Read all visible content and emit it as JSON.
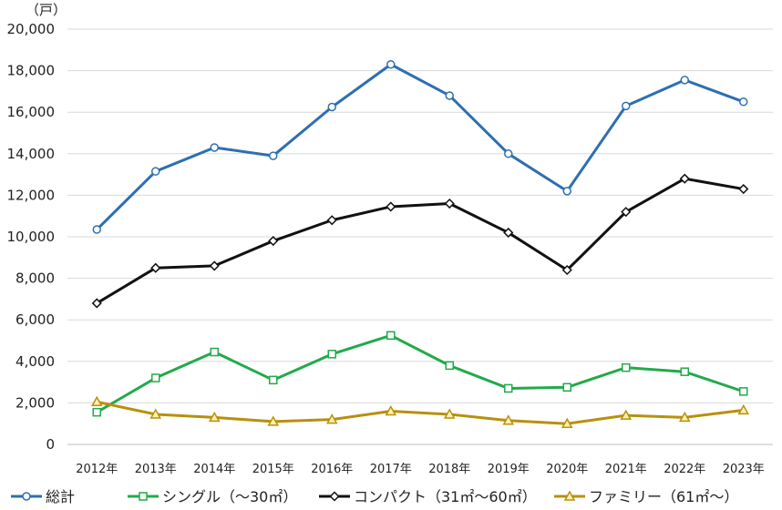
{
  "chart_data": {
    "type": "line",
    "unit_label": "（戸）",
    "categories": [
      "2012年",
      "2013年",
      "2014年",
      "2015年",
      "2016年",
      "2017年",
      "2018年",
      "2019年",
      "2020年",
      "2021年",
      "2022年",
      "2023年"
    ],
    "ylim": [
      0,
      20000
    ],
    "yticks": [
      "0",
      "2,000",
      "4,000",
      "6,000",
      "8,000",
      "10,000",
      "12,000",
      "14,000",
      "16,000",
      "18,000",
      "20,000"
    ],
    "ytick_values": [
      0,
      2000,
      4000,
      6000,
      8000,
      10000,
      12000,
      14000,
      16000,
      18000,
      20000
    ],
    "grid": "horizontal",
    "legend_position": "bottom",
    "series": [
      {
        "name": "総計",
        "color": "#2e6fb0",
        "marker": "circle",
        "values": [
          10350,
          13150,
          14300,
          13900,
          16250,
          18300,
          16800,
          14000,
          12200,
          16300,
          17550,
          16500
        ]
      },
      {
        "name": "シングル（～30㎡）",
        "color": "#22aa4a",
        "marker": "square",
        "values": [
          1550,
          3200,
          4450,
          3100,
          4350,
          5250,
          3800,
          2700,
          2750,
          3700,
          3500,
          2550
        ]
      },
      {
        "name": "コンパクト（31㎡～60㎡）",
        "color": "#111111",
        "marker": "diamond",
        "values": [
          6800,
          8500,
          8600,
          9800,
          10800,
          11450,
          11600,
          10200,
          8400,
          11200,
          12800,
          12300
        ]
      },
      {
        "name": "ファミリー（61㎡～）",
        "color": "#b8900e",
        "marker": "triangle",
        "values": [
          2050,
          1450,
          1300,
          1100,
          1200,
          1600,
          1450,
          1150,
          1000,
          1400,
          1300,
          1650
        ]
      }
    ]
  }
}
